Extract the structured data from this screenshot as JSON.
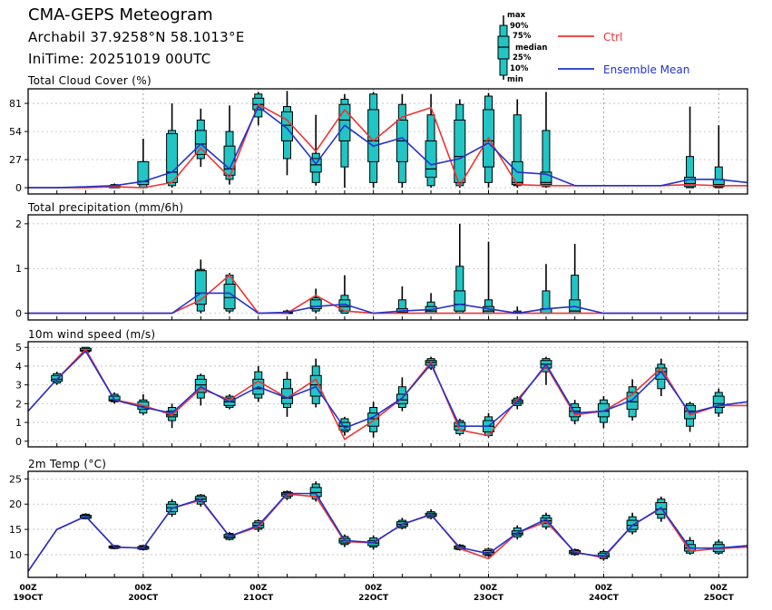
{
  "header": {
    "title": "CMA-GEPS Meteogram",
    "location": "Archabil 37.9258°N 58.1013°E",
    "init_time": "IniTime: 20251019 00UTC"
  },
  "legend": {
    "box_labels": [
      "max",
      "90%",
      "75%",
      "median",
      "25%",
      "10%",
      "min"
    ],
    "ctrl_label": "Ctrl",
    "mean_label": "Ensemble Mean",
    "ctrl_color": "#ee3333",
    "mean_color": "#2233cc",
    "box_color": "#22c4c4"
  },
  "chart_data": [
    {
      "type": "boxplot",
      "title": "Total Cloud Cover (%)",
      "ylim": [
        -6,
        95
      ],
      "yticks": [
        0,
        27,
        54,
        81
      ],
      "boxes": [
        {
          "x": 3,
          "min": 0,
          "p10": 0,
          "p25": 0,
          "median": 1,
          "p75": 2,
          "p90": 3,
          "max": 4
        },
        {
          "x": 4,
          "min": 0,
          "p10": 0,
          "p25": 3,
          "median": 6,
          "p75": 25,
          "p90": 25,
          "max": 47
        },
        {
          "x": 5,
          "min": 0,
          "p10": 2,
          "p25": 5,
          "median": 15,
          "p75": 52,
          "p90": 55,
          "max": 81
        },
        {
          "x": 6,
          "min": 20,
          "p10": 28,
          "p25": 32,
          "median": 42,
          "p75": 55,
          "p90": 65,
          "max": 76
        },
        {
          "x": 7,
          "min": 3,
          "p10": 8,
          "p25": 12,
          "median": 18,
          "p75": 40,
          "p90": 54,
          "max": 79
        },
        {
          "x": 8,
          "min": 60,
          "p10": 68,
          "p25": 75,
          "median": 80,
          "p75": 86,
          "p90": 90,
          "max": 92
        },
        {
          "x": 9,
          "min": 12,
          "p10": 28,
          "p25": 45,
          "median": 60,
          "p75": 73,
          "p90": 78,
          "max": 93
        },
        {
          "x": 10,
          "min": 2,
          "p10": 5,
          "p25": 15,
          "median": 22,
          "p75": 28,
          "p90": 33,
          "max": 70
        },
        {
          "x": 11,
          "min": 0,
          "p10": 20,
          "p25": 45,
          "median": 65,
          "p75": 80,
          "p90": 85,
          "max": 90
        },
        {
          "x": 12,
          "min": 0,
          "p10": 5,
          "p25": 25,
          "median": 45,
          "p75": 75,
          "p90": 90,
          "max": 92
        },
        {
          "x": 13,
          "min": 0,
          "p10": 5,
          "p25": 25,
          "median": 45,
          "p75": 65,
          "p90": 80,
          "max": 90
        },
        {
          "x": 14,
          "min": 0,
          "p10": 2,
          "p25": 10,
          "median": 18,
          "p75": 45,
          "p90": 70,
          "max": 90
        },
        {
          "x": 15,
          "min": 0,
          "p10": 2,
          "p25": 5,
          "median": 30,
          "p75": 65,
          "p90": 80,
          "max": 85
        },
        {
          "x": 16,
          "min": 0,
          "p10": 5,
          "p25": 20,
          "median": 45,
          "p75": 75,
          "p90": 88,
          "max": 91
        },
        {
          "x": 17,
          "min": 0,
          "p10": 2,
          "p25": 3,
          "median": 5,
          "p75": 25,
          "p90": 70,
          "max": 85
        },
        {
          "x": 18,
          "min": 0,
          "p10": 1,
          "p25": 3,
          "median": 5,
          "p75": 15,
          "p90": 55,
          "max": 92
        },
        {
          "x": 23,
          "min": 0,
          "p10": 0,
          "p25": 1,
          "median": 4,
          "p75": 10,
          "p90": 30,
          "max": 78
        },
        {
          "x": 24,
          "min": 0,
          "p10": 0,
          "p25": 1,
          "median": 3,
          "p75": 8,
          "p90": 20,
          "max": 60
        }
      ],
      "ctrl": [
        0,
        0,
        0,
        1,
        0,
        5,
        38,
        10,
        80,
        65,
        35,
        75,
        45,
        68,
        77,
        2,
        48,
        3,
        2,
        2,
        2,
        2,
        2,
        3,
        2,
        2
      ],
      "mean": [
        0,
        0,
        1,
        2,
        6,
        15,
        42,
        18,
        78,
        57,
        23,
        60,
        40,
        48,
        22,
        28,
        43,
        15,
        13,
        2,
        2,
        2,
        2,
        8,
        8,
        5
      ]
    },
    {
      "type": "boxplot",
      "title": "Total precipitation (mm/6h)",
      "ylim": [
        -0.15,
        2.2
      ],
      "yticks": [
        0,
        1,
        2
      ],
      "boxes": [
        {
          "x": 6,
          "min": 0,
          "p10": 0.05,
          "p25": 0.2,
          "median": 0.45,
          "p75": 0.95,
          "p90": 0.98,
          "max": 1.2
        },
        {
          "x": 7,
          "min": 0,
          "p10": 0.05,
          "p25": 0.1,
          "median": 0.35,
          "p75": 0.65,
          "p90": 0.85,
          "max": 0.9
        },
        {
          "x": 9,
          "min": 0,
          "p10": 0,
          "p25": 0,
          "median": 0,
          "p75": 0.02,
          "p90": 0.05,
          "max": 0.08
        },
        {
          "x": 10,
          "min": 0,
          "p10": 0.05,
          "p25": 0.1,
          "median": 0.15,
          "p75": 0.3,
          "p90": 0.35,
          "max": 0.55
        },
        {
          "x": 11,
          "min": 0,
          "p10": 0,
          "p25": 0.05,
          "median": 0.15,
          "p75": 0.3,
          "p90": 0.4,
          "max": 0.85
        },
        {
          "x": 13,
          "min": 0,
          "p10": 0,
          "p25": 0,
          "median": 0.02,
          "p75": 0.1,
          "p90": 0.3,
          "max": 0.6
        },
        {
          "x": 14,
          "min": 0,
          "p10": 0,
          "p25": 0,
          "median": 0.05,
          "p75": 0.15,
          "p90": 0.25,
          "max": 0.45
        },
        {
          "x": 15,
          "min": 0,
          "p10": 0,
          "p25": 0.05,
          "median": 0.2,
          "p75": 0.5,
          "p90": 1.05,
          "max": 2.0
        },
        {
          "x": 16,
          "min": 0,
          "p10": 0,
          "p25": 0,
          "median": 0.05,
          "p75": 0.15,
          "p90": 0.3,
          "max": 1.6
        },
        {
          "x": 17,
          "min": 0,
          "p10": 0,
          "p25": 0,
          "median": 0,
          "p75": 0.02,
          "p90": 0.05,
          "max": 0.15
        },
        {
          "x": 18,
          "min": 0,
          "p10": 0,
          "p25": 0,
          "median": 0,
          "p75": 0.1,
          "p90": 0.5,
          "max": 1.1
        },
        {
          "x": 19,
          "min": 0,
          "p10": 0,
          "p25": 0,
          "median": 0.05,
          "p75": 0.3,
          "p90": 0.85,
          "max": 1.55
        }
      ],
      "ctrl": [
        0,
        0,
        0,
        0,
        0,
        0,
        0.3,
        0.85,
        0,
        0,
        0.4,
        0.05,
        0,
        0,
        0,
        0,
        0,
        0,
        0,
        0,
        0,
        0,
        0,
        0,
        0,
        0
      ],
      "mean": [
        0,
        0,
        0,
        0,
        0,
        0,
        0.45,
        0.45,
        0,
        0.02,
        0.15,
        0.2,
        0,
        0.05,
        0.08,
        0.2,
        0.1,
        0,
        0.1,
        0.15,
        0,
        0,
        0,
        0,
        0,
        0
      ]
    },
    {
      "type": "boxplot",
      "title": "10m wind speed (m/s)",
      "ylim": [
        -0.3,
        5.3
      ],
      "yticks": [
        0,
        1,
        2,
        3,
        4,
        5
      ],
      "boxes": [
        {
          "x": 1,
          "min": 3.0,
          "p10": 3.1,
          "p25": 3.2,
          "median": 3.3,
          "p75": 3.5,
          "p90": 3.6,
          "max": 3.7
        },
        {
          "x": 2,
          "min": 4.7,
          "p10": 4.75,
          "p25": 4.8,
          "median": 4.85,
          "p75": 4.95,
          "p90": 5.0,
          "max": 5.0
        },
        {
          "x": 3,
          "min": 2.0,
          "p10": 2.1,
          "p25": 2.15,
          "median": 2.2,
          "p75": 2.4,
          "p90": 2.5,
          "max": 2.6
        },
        {
          "x": 4,
          "min": 1.4,
          "p10": 1.5,
          "p25": 1.7,
          "median": 1.85,
          "p75": 2.1,
          "p90": 2.2,
          "max": 2.5
        },
        {
          "x": 5,
          "min": 0.7,
          "p10": 1.1,
          "p25": 1.3,
          "median": 1.4,
          "p75": 1.6,
          "p90": 1.8,
          "max": 2.0
        },
        {
          "x": 6,
          "min": 1.9,
          "p10": 2.3,
          "p25": 2.6,
          "median": 3.0,
          "p75": 3.3,
          "p90": 3.5,
          "max": 3.6
        },
        {
          "x": 7,
          "min": 1.7,
          "p10": 1.8,
          "p25": 1.9,
          "median": 2.1,
          "p75": 2.3,
          "p90": 2.4,
          "max": 2.5
        },
        {
          "x": 8,
          "min": 2.1,
          "p10": 2.3,
          "p25": 2.5,
          "median": 2.8,
          "p75": 3.3,
          "p90": 3.7,
          "max": 4.0
        },
        {
          "x": 9,
          "min": 1.3,
          "p10": 1.8,
          "p25": 2.0,
          "median": 2.3,
          "p75": 2.8,
          "p90": 3.3,
          "max": 3.7
        },
        {
          "x": 10,
          "min": 1.8,
          "p10": 2.0,
          "p25": 2.4,
          "median": 3.0,
          "p75": 3.5,
          "p90": 4.0,
          "max": 4.4
        },
        {
          "x": 11,
          "min": 0.3,
          "p10": 0.5,
          "p25": 0.6,
          "median": 0.8,
          "p75": 1.0,
          "p90": 1.2,
          "max": 1.3
        },
        {
          "x": 12,
          "min": 0.2,
          "p10": 0.5,
          "p25": 0.8,
          "median": 1.2,
          "p75": 1.5,
          "p90": 1.8,
          "max": 2.1
        },
        {
          "x": 13,
          "min": 1.6,
          "p10": 1.8,
          "p25": 2.0,
          "median": 2.2,
          "p75": 2.5,
          "p90": 2.9,
          "max": 3.4
        },
        {
          "x": 14,
          "min": 3.8,
          "p10": 3.9,
          "p25": 4.05,
          "median": 4.2,
          "p75": 4.3,
          "p90": 4.4,
          "max": 4.5
        },
        {
          "x": 15,
          "min": 0.3,
          "p10": 0.4,
          "p25": 0.6,
          "median": 0.8,
          "p75": 1.0,
          "p90": 1.1,
          "max": 1.2
        },
        {
          "x": 16,
          "min": 0.2,
          "p10": 0.3,
          "p25": 0.5,
          "median": 0.8,
          "p75": 1.1,
          "p90": 1.3,
          "max": 1.5
        },
        {
          "x": 17,
          "min": 1.7,
          "p10": 1.9,
          "p25": 2.0,
          "median": 2.1,
          "p75": 2.2,
          "p90": 2.3,
          "max": 2.4
        },
        {
          "x": 18,
          "min": 3.0,
          "p10": 3.7,
          "p25": 3.9,
          "median": 4.1,
          "p75": 4.3,
          "p90": 4.4,
          "max": 4.5
        },
        {
          "x": 19,
          "min": 0.9,
          "p10": 1.1,
          "p25": 1.3,
          "median": 1.6,
          "p75": 1.8,
          "p90": 2.0,
          "max": 2.2
        },
        {
          "x": 20,
          "min": 0.7,
          "p10": 1.0,
          "p25": 1.3,
          "median": 1.6,
          "p75": 2.0,
          "p90": 2.2,
          "max": 2.4
        },
        {
          "x": 21,
          "min": 1.1,
          "p10": 1.3,
          "p25": 1.7,
          "median": 2.1,
          "p75": 2.6,
          "p90": 2.9,
          "max": 3.3
        },
        {
          "x": 22,
          "min": 2.4,
          "p10": 2.8,
          "p25": 3.3,
          "median": 3.7,
          "p75": 3.9,
          "p90": 4.1,
          "max": 4.4
        },
        {
          "x": 23,
          "min": 0.5,
          "p10": 0.8,
          "p25": 1.2,
          "median": 1.6,
          "p75": 1.9,
          "p90": 2.0,
          "max": 2.1
        },
        {
          "x": 24,
          "min": 1.3,
          "p10": 1.5,
          "p25": 1.8,
          "median": 2.0,
          "p75": 2.4,
          "p90": 2.6,
          "max": 2.8
        }
      ],
      "ctrl": [
        1.6,
        3.3,
        4.9,
        2.2,
        1.9,
        1.4,
        2.8,
        2.2,
        3.2,
        2.3,
        3.3,
        0.1,
        1.1,
        2.3,
        4.2,
        0.6,
        0.3,
        2.2,
        4.0,
        1.4,
        1.6,
        2.5,
        3.9,
        1.4,
        1.9,
        1.9
      ],
      "mean": [
        1.6,
        3.3,
        4.8,
        2.2,
        1.8,
        1.5,
        2.9,
        2.1,
        2.9,
        2.3,
        2.9,
        0.7,
        1.3,
        2.3,
        4.1,
        0.8,
        0.8,
        2.1,
        4.1,
        1.5,
        1.6,
        2.2,
        3.7,
        1.5,
        1.9,
        2.1
      ]
    },
    {
      "type": "boxplot",
      "title": "2m Temp (°C)",
      "ylim": [
        5.5,
        26.5
      ],
      "yticks": [
        10,
        15,
        20,
        25
      ],
      "boxes": [
        {
          "x": 2,
          "min": 17.0,
          "p10": 17.1,
          "p25": 17.2,
          "median": 17.5,
          "p75": 17.8,
          "p90": 18.0,
          "max": 18.2
        },
        {
          "x": 3,
          "min": 11.1,
          "p10": 11.2,
          "p25": 11.3,
          "median": 11.5,
          "p75": 11.7,
          "p90": 11.8,
          "max": 11.9
        },
        {
          "x": 4,
          "min": 10.8,
          "p10": 11.0,
          "p25": 11.1,
          "median": 11.4,
          "p75": 11.6,
          "p90": 11.8,
          "max": 11.9
        },
        {
          "x": 5,
          "min": 17.5,
          "p10": 18.0,
          "p25": 18.5,
          "median": 19.3,
          "p75": 20.0,
          "p90": 20.5,
          "max": 21.0
        },
        {
          "x": 6,
          "min": 19.5,
          "p10": 20.0,
          "p25": 20.5,
          "median": 21.0,
          "p75": 21.5,
          "p90": 21.8,
          "max": 22.0
        },
        {
          "x": 7,
          "min": 12.8,
          "p10": 13.0,
          "p25": 13.3,
          "median": 13.6,
          "p75": 14.0,
          "p90": 14.2,
          "max": 14.5
        },
        {
          "x": 8,
          "min": 14.5,
          "p10": 15.0,
          "p25": 15.3,
          "median": 15.8,
          "p75": 16.3,
          "p90": 16.7,
          "max": 17.0
        },
        {
          "x": 9,
          "min": 20.8,
          "p10": 21.2,
          "p25": 21.6,
          "median": 22.0,
          "p75": 22.3,
          "p90": 22.5,
          "max": 22.7
        },
        {
          "x": 10,
          "min": 20.5,
          "p10": 21.0,
          "p25": 21.5,
          "median": 22.3,
          "p75": 23.3,
          "p90": 24.0,
          "max": 24.5
        },
        {
          "x": 11,
          "min": 11.5,
          "p10": 12.0,
          "p25": 12.3,
          "median": 12.7,
          "p75": 13.2,
          "p90": 13.6,
          "max": 14.0
        },
        {
          "x": 12,
          "min": 11.0,
          "p10": 11.5,
          "p25": 11.8,
          "median": 12.3,
          "p75": 12.8,
          "p90": 13.3,
          "max": 13.8
        },
        {
          "x": 13,
          "min": 15.0,
          "p10": 15.3,
          "p25": 15.6,
          "median": 16.0,
          "p75": 16.5,
          "p90": 16.8,
          "max": 17.3
        },
        {
          "x": 14,
          "min": 17.0,
          "p10": 17.3,
          "p25": 17.6,
          "median": 17.9,
          "p75": 18.2,
          "p90": 18.5,
          "max": 19.0
        },
        {
          "x": 15,
          "min": 10.8,
          "p10": 11.0,
          "p25": 11.1,
          "median": 11.4,
          "p75": 11.7,
          "p90": 11.9,
          "max": 12.1
        },
        {
          "x": 16,
          "min": 9.5,
          "p10": 9.8,
          "p25": 10.0,
          "median": 10.4,
          "p75": 10.8,
          "p90": 11.1,
          "max": 11.4
        },
        {
          "x": 17,
          "min": 13.0,
          "p10": 13.5,
          "p25": 13.9,
          "median": 14.2,
          "p75": 14.7,
          "p90": 15.3,
          "max": 15.8
        },
        {
          "x": 18,
          "min": 15.0,
          "p10": 15.5,
          "p25": 16.2,
          "median": 16.7,
          "p75": 17.3,
          "p90": 17.8,
          "max": 18.3
        },
        {
          "x": 19,
          "min": 9.8,
          "p10": 10.0,
          "p25": 10.2,
          "median": 10.5,
          "p75": 10.8,
          "p90": 11.0,
          "max": 11.2
        },
        {
          "x": 20,
          "min": 8.8,
          "p10": 9.2,
          "p25": 9.5,
          "median": 9.8,
          "p75": 10.3,
          "p90": 10.6,
          "max": 11.0
        },
        {
          "x": 21,
          "min": 14.0,
          "p10": 14.5,
          "p25": 15.0,
          "median": 15.8,
          "p75": 16.8,
          "p90": 17.5,
          "max": 18.3
        },
        {
          "x": 22,
          "min": 16.5,
          "p10": 17.2,
          "p25": 18.0,
          "median": 19.0,
          "p75": 20.3,
          "p90": 21.0,
          "max": 21.5
        },
        {
          "x": 23,
          "min": 10.0,
          "p10": 10.3,
          "p25": 10.7,
          "median": 11.3,
          "p75": 12.0,
          "p90": 12.8,
          "max": 13.5
        },
        {
          "x": 24,
          "min": 10.0,
          "p10": 10.3,
          "p25": 10.6,
          "median": 11.2,
          "p75": 12.0,
          "p90": 12.5,
          "max": 13.0
        }
      ],
      "ctrl": [
        6.7,
        15.0,
        17.6,
        11.5,
        11.3,
        19.2,
        20.8,
        13.6,
        15.5,
        22.0,
        21.5,
        12.6,
        12.3,
        16.0,
        18.0,
        11.2,
        9.2,
        14.3,
        16.5,
        10.5,
        9.4,
        15.8,
        19.2,
        10.7,
        11.2,
        11.5
      ],
      "mean": [
        6.7,
        15.0,
        17.6,
        11.5,
        11.3,
        19.2,
        21.0,
        13.6,
        15.8,
        22.1,
        22.1,
        12.8,
        12.4,
        16.0,
        17.9,
        11.4,
        10.2,
        14.3,
        17.0,
        10.4,
        9.6,
        15.8,
        19.3,
        11.3,
        11.3,
        11.8
      ]
    }
  ],
  "x_axis": {
    "days": [
      {
        "top": "00Z",
        "bottom": "19OCT"
      },
      {
        "top": "00Z",
        "bottom": "20OCT"
      },
      {
        "top": "00Z",
        "bottom": "21OCT"
      },
      {
        "top": "00Z",
        "bottom": "22OCT"
      },
      {
        "top": "00Z",
        "bottom": "23OCT"
      },
      {
        "top": "00Z",
        "bottom": "24OCT"
      },
      {
        "top": "00Z",
        "bottom": "25OCT"
      }
    ]
  }
}
